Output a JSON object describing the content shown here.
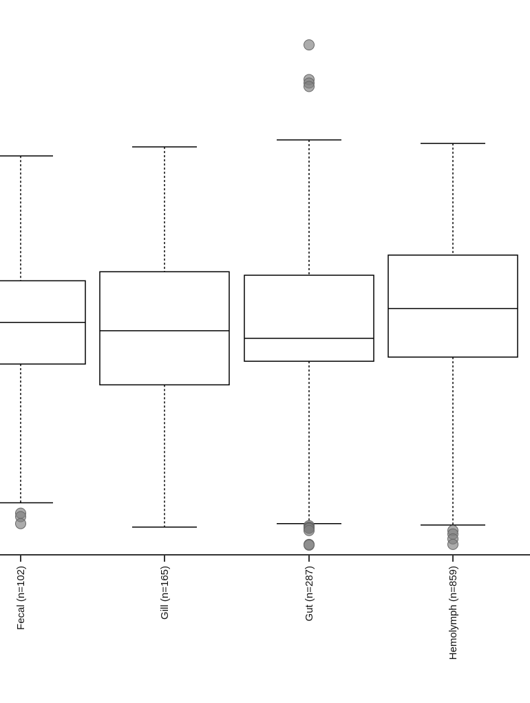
{
  "chart_data": {
    "type": "box",
    "categories": [
      "Fecal (n=102)",
      "Gill (n=165)",
      "Gut (n=287)",
      "Hemolymph (n=859)"
    ],
    "boxes": [
      {
        "whislo": 0.2,
        "q1": 0.4,
        "med": 0.46,
        "q3": 0.52,
        "whishi": 0.7,
        "fliers": [
          0.185,
          0.18,
          0.17
        ]
      },
      {
        "whislo": 0.165,
        "q1": 0.37,
        "med": 0.448,
        "q3": 0.533,
        "whishi": 0.713,
        "fliers": []
      },
      {
        "whislo": 0.17,
        "q1": 0.404,
        "med": 0.437,
        "q3": 0.528,
        "whishi": 0.723,
        "fliers": [
          0.86,
          0.81,
          0.805,
          0.8,
          0.167,
          0.165,
          0.164,
          0.163,
          0.16,
          0.14,
          0.139
        ]
      },
      {
        "whislo": 0.168,
        "q1": 0.41,
        "med": 0.48,
        "q3": 0.557,
        "whishi": 0.718,
        "fliers": [
          0.16,
          0.155,
          0.148,
          0.14
        ]
      }
    ],
    "ylim": [
      0.125,
      0.88
    ],
    "grid": false,
    "xlabel": "",
    "ylabel": ""
  }
}
